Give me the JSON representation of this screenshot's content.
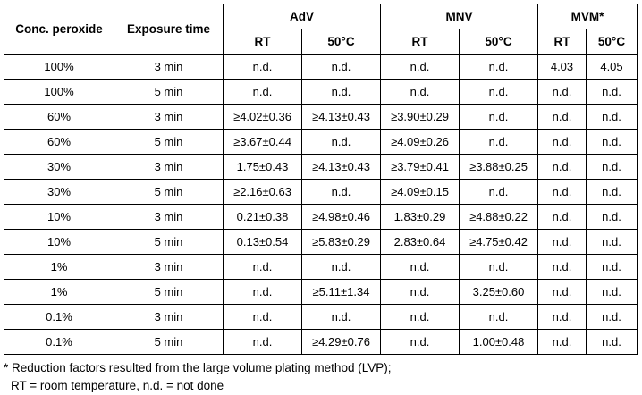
{
  "header": {
    "conc": "Conc. peroxide",
    "time": "Exposure time",
    "groups": [
      "AdV",
      "MNV",
      "MVM*"
    ],
    "sub": [
      "RT",
      "50°C",
      "RT",
      "50°C",
      "RT",
      "50°C"
    ]
  },
  "rows": [
    [
      "100%",
      "3 min",
      "n.d.",
      "n.d.",
      "n.d.",
      "n.d.",
      "4.03",
      "4.05"
    ],
    [
      "100%",
      "5 min",
      "n.d.",
      "n.d.",
      "n.d.",
      "n.d.",
      "n.d.",
      "n.d."
    ],
    [
      "60%",
      "3 min",
      "≥4.02±0.36",
      "≥4.13±0.43",
      "≥3.90±0.29",
      "n.d.",
      "n.d.",
      "n.d."
    ],
    [
      "60%",
      "5 min",
      "≥3.67±0.44",
      "n.d.",
      "≥4.09±0.26",
      "n.d.",
      "n.d.",
      "n.d."
    ],
    [
      "30%",
      "3 min",
      "1.75±0.43",
      "≥4.13±0.43",
      "≥3.79±0.41",
      "≥3.88±0.25",
      "n.d.",
      "n.d."
    ],
    [
      "30%",
      "5 min",
      "≥2.16±0.63",
      "n.d.",
      "≥4.09±0.15",
      "n.d.",
      "n.d.",
      "n.d."
    ],
    [
      "10%",
      "3 min",
      "0.21±0.38",
      "≥4.98±0.46",
      "1.83±0.29",
      "≥4.88±0.22",
      "n.d.",
      "n.d."
    ],
    [
      "10%",
      "5 min",
      "0.13±0.54",
      "≥5.83±0.29",
      "2.83±0.64",
      "≥4.75±0.42",
      "n.d.",
      "n.d."
    ],
    [
      "1%",
      "3 min",
      "n.d.",
      "n.d.",
      "n.d.",
      "n.d.",
      "n.d.",
      "n.d."
    ],
    [
      "1%",
      "5 min",
      "n.d.",
      "≥5.11±1.34",
      "n.d.",
      "3.25±0.60",
      "n.d.",
      "n.d."
    ],
    [
      "0.1%",
      "3 min",
      "n.d.",
      "n.d.",
      "n.d.",
      "n.d.",
      "n.d.",
      "n.d."
    ],
    [
      "0.1%",
      "5 min",
      "n.d.",
      "≥4.29±0.76",
      "n.d.",
      "1.00±0.48",
      "n.d.",
      "n.d."
    ]
  ],
  "footnote": {
    "line1": "* Reduction factors resulted from the large volume plating method (LVP);",
    "line2": "RT = room temperature, n.d. = not done"
  }
}
